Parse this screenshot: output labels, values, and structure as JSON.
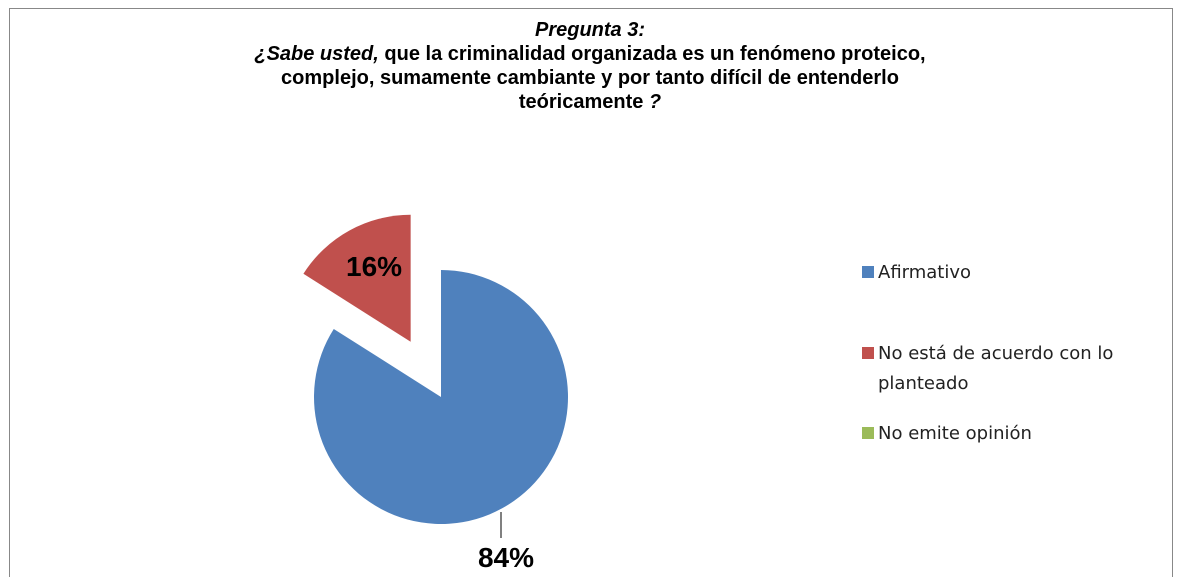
{
  "chart_data": {
    "type": "pie",
    "title": [
      [
        "Pregunta 3:"
      ],
      [
        "¿Sabe usted,",
        "que la criminalidad organizada es un fenómeno proteico,"
      ],
      [
        "complejo, sumamente cambiante y por tanto difícil de entenderlo"
      ],
      [
        "teóricamente",
        "?"
      ]
    ],
    "categories": [
      "Afirmativo",
      "No está de acuerdo con lo planteado",
      "No emite opinión"
    ],
    "values": [
      84,
      16,
      0
    ],
    "value_labels": [
      "84%",
      "16%",
      null
    ],
    "colors": [
      "#4f81bd",
      "#c0504d",
      "#9bbb59"
    ],
    "explode": [
      0,
      1,
      0
    ],
    "legend": "right"
  }
}
